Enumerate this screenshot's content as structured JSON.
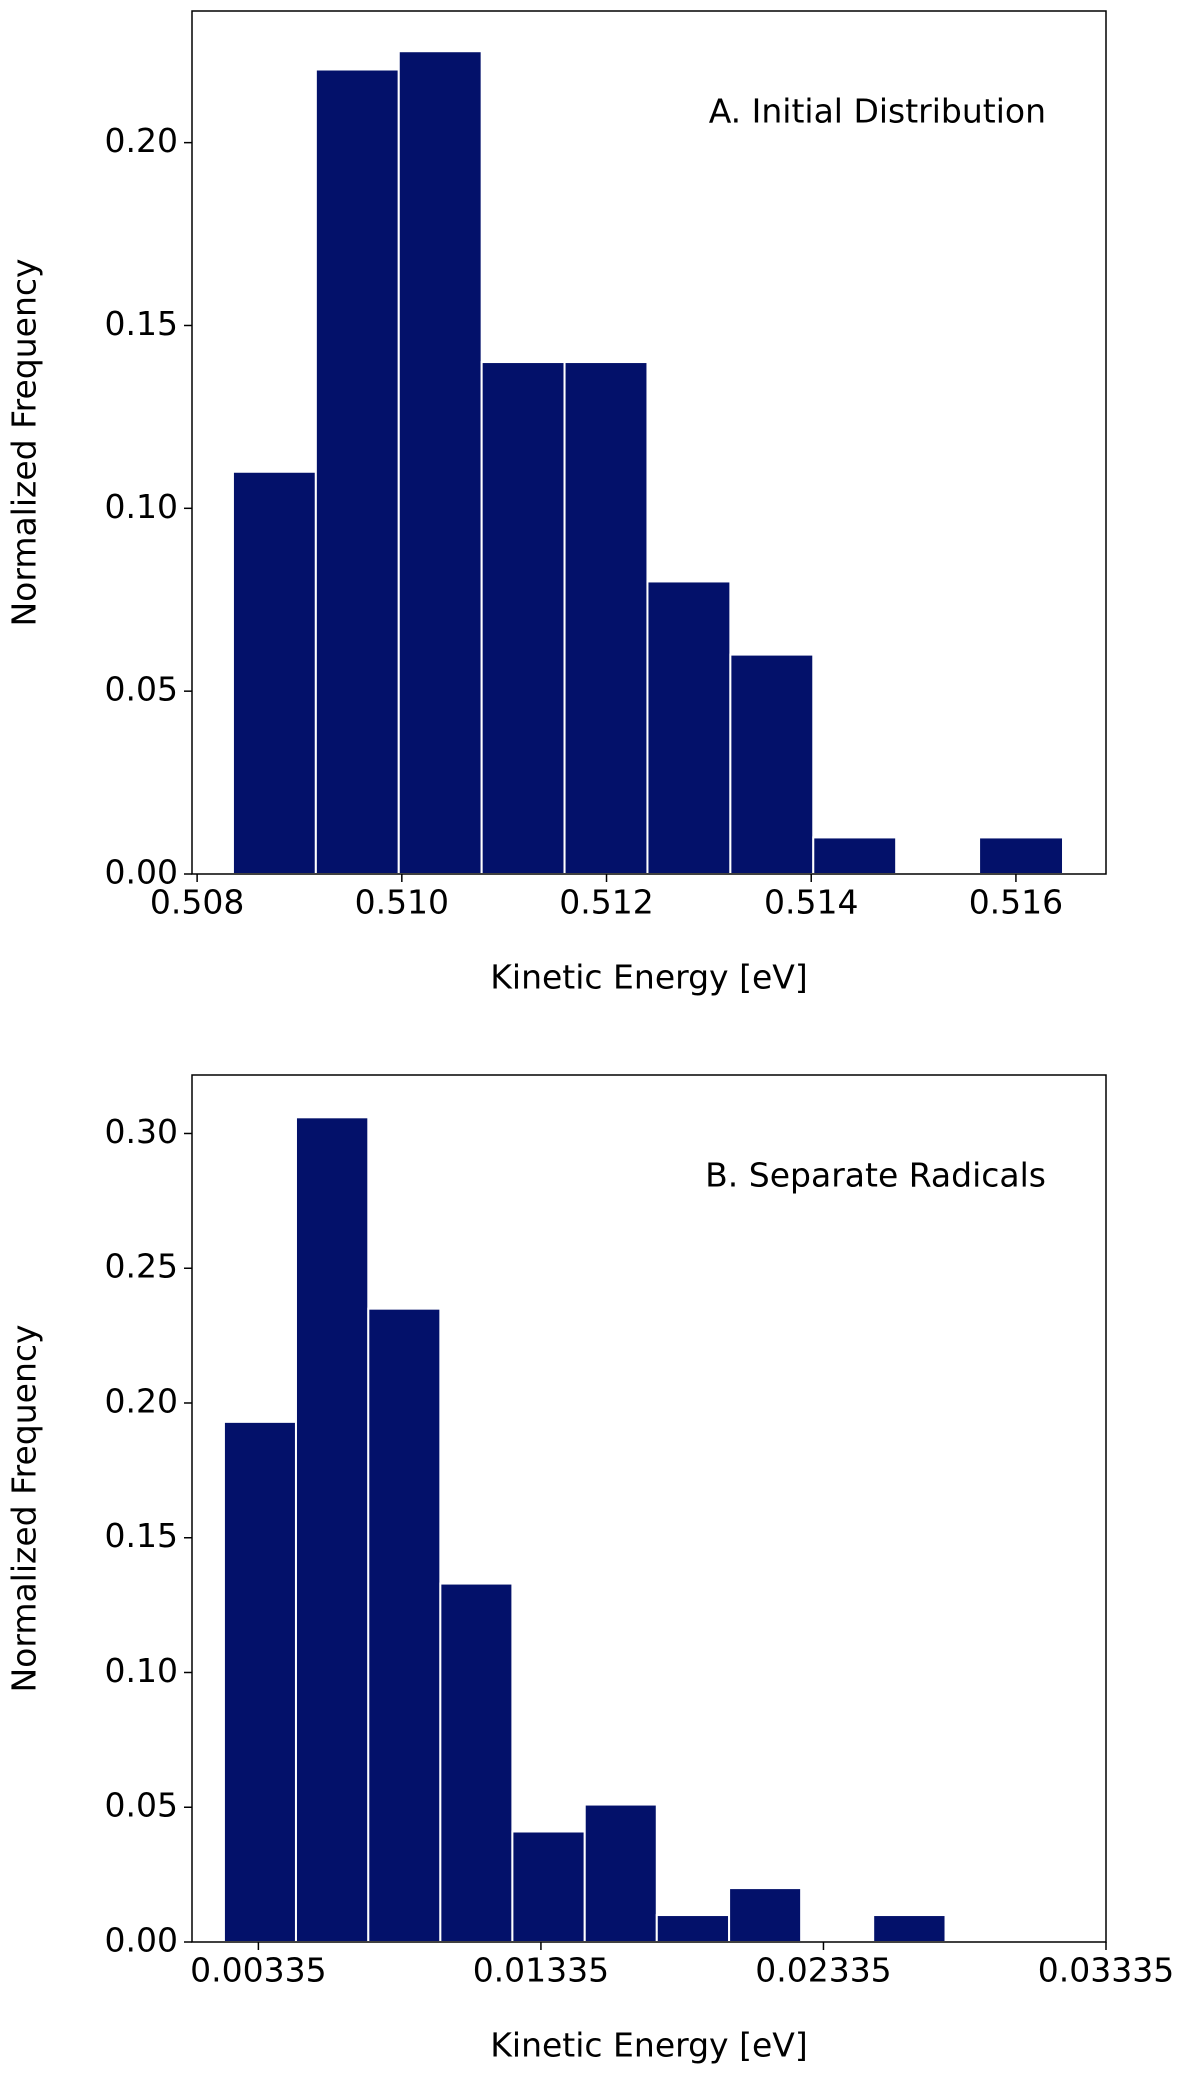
{
  "chart_data": [
    {
      "type": "histogram",
      "annotation": "A. Initial Distribution",
      "xlabel": "Kinetic Energy [eV]",
      "ylabel": "Normalized Frequency",
      "bins": [
        0.50835,
        0.50916,
        0.50997,
        0.51078,
        0.51159,
        0.5124,
        0.51321,
        0.51402,
        0.51483,
        0.51564,
        0.51646
      ],
      "values": [
        0.11,
        0.22,
        0.225,
        0.14,
        0.14,
        0.08,
        0.06,
        0.01,
        0,
        0.01
      ],
      "color": "#03116a",
      "xlim": [
        0.50795,
        0.51688
      ],
      "ylim": [
        0,
        0.236
      ],
      "xticks": [
        0.508,
        {
          "value": 0.51,
          "label": "0.510"
        },
        0.512,
        0.514,
        0.516
      ],
      "yticks": [
        {
          "value": 0,
          "label": "0.00"
        },
        0.05,
        {
          "value": 0.1,
          "label": "0.10"
        },
        0.15,
        {
          "value": 0.2,
          "label": "0.20"
        }
      ]
    },
    {
      "type": "histogram",
      "annotation": "B. Separate Radicals",
      "xlabel": "Kinetic Energy [eV]",
      "ylabel": "Normalized Frequency",
      "bins": [
        0.00213,
        0.00468,
        0.00724,
        0.00979,
        0.01234,
        0.0149,
        0.01745,
        0.02001,
        0.02256,
        0.02511,
        0.02767
      ],
      "values": [
        0.193,
        0.306,
        0.235,
        0.133,
        0.041,
        0.051,
        0.01,
        0.02,
        0,
        0.01
      ],
      "color": "#03116a",
      "xlim": [
        0.001,
        0.03335
      ],
      "ylim": [
        0,
        0.3217
      ],
      "xticks": [
        0.00335,
        0.01335,
        0.02335,
        0.03335
      ],
      "yticks": [
        {
          "value": 0,
          "label": "0.00"
        },
        0.05,
        {
          "value": 0.1,
          "label": "0.10"
        },
        0.15,
        {
          "value": 0.2,
          "label": "0.20"
        },
        0.25,
        {
          "value": 0.3,
          "label": "0.30"
        }
      ]
    }
  ]
}
